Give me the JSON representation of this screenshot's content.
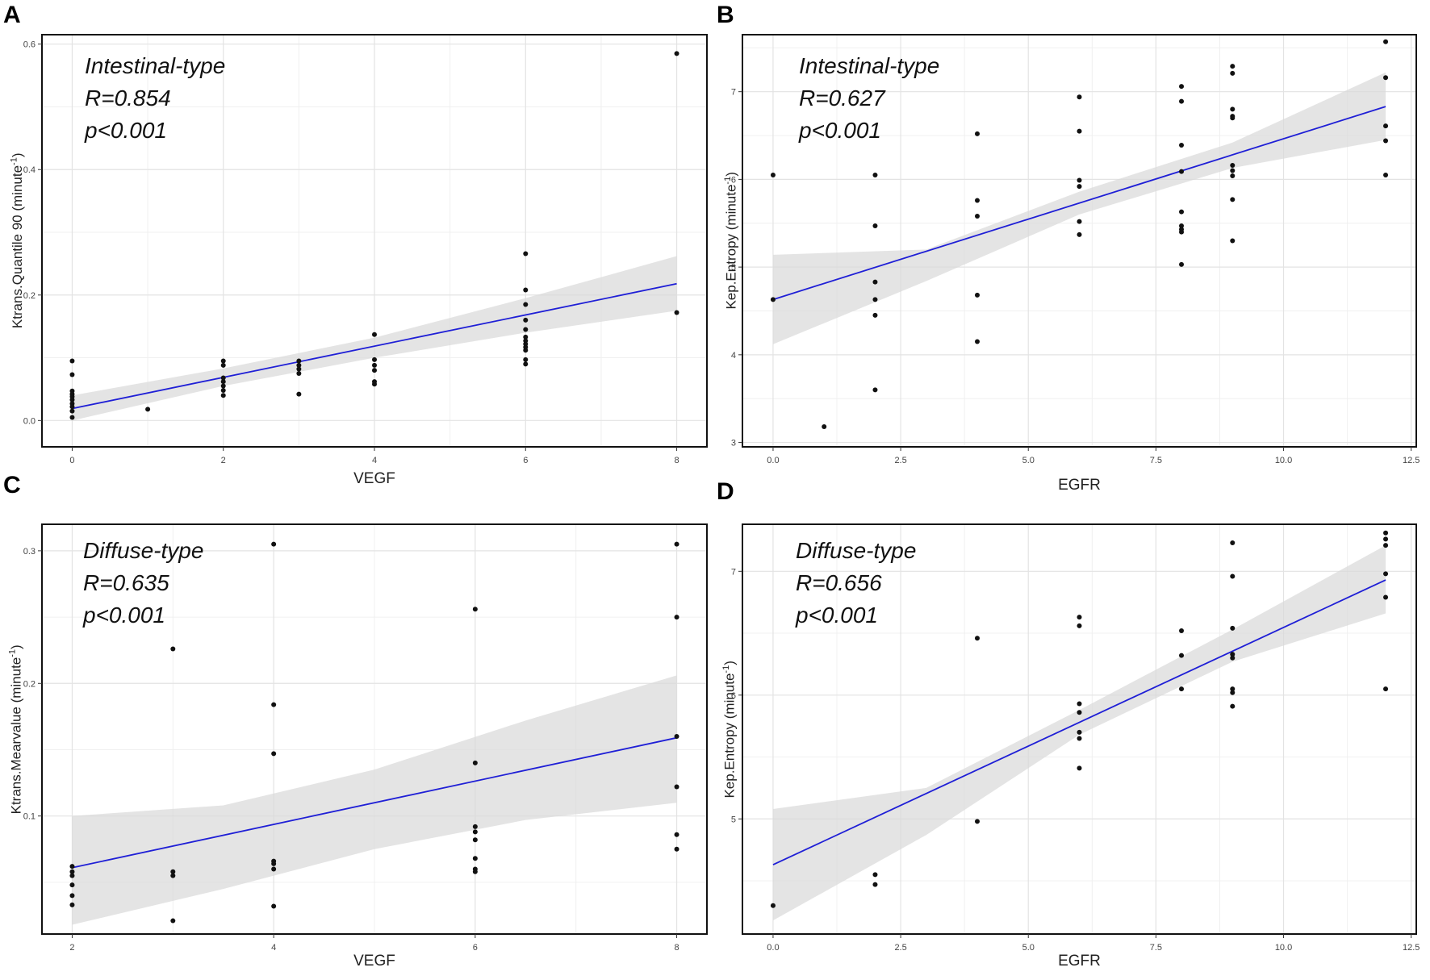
{
  "chart_data": [
    {
      "panel": "A",
      "type": "scatter",
      "xlabel": "VEGF",
      "ylabel": "Ktrans.Quantile 90   (minute",
      "ylabel_sup": "-1",
      "ylabel_end": ")",
      "annotation": [
        "Intestinal-type",
        "R=0.854",
        "p<0.001"
      ],
      "xlim": [
        -0.4,
        8.4
      ],
      "ylim": [
        -0.042,
        0.615
      ],
      "xticks": [
        0,
        2,
        4,
        6,
        8
      ],
      "xtick_labels": [
        "0",
        "2",
        "4",
        "6",
        "8"
      ],
      "yticks": [
        0.0,
        0.2,
        0.4,
        0.6
      ],
      "ytick_labels": [
        "0.0",
        "0.2",
        "0.4",
        "0.6"
      ],
      "fit": {
        "x": [
          0,
          8
        ],
        "y": [
          0.019,
          0.218
        ]
      },
      "band": {
        "x": [
          0,
          2,
          4,
          6,
          8
        ],
        "lower": [
          0.0,
          0.055,
          0.1,
          0.14,
          0.175
        ],
        "upper": [
          0.04,
          0.083,
          0.132,
          0.195,
          0.262
        ]
      },
      "points": [
        [
          0,
          0.095
        ],
        [
          0,
          0.073
        ],
        [
          0,
          0.047
        ],
        [
          0,
          0.042
        ],
        [
          0,
          0.038
        ],
        [
          0,
          0.033
        ],
        [
          0,
          0.027
        ],
        [
          0,
          0.022
        ],
        [
          0,
          0.015
        ],
        [
          0,
          0.005
        ],
        [
          1,
          0.018
        ],
        [
          2,
          0.095
        ],
        [
          2,
          0.088
        ],
        [
          2,
          0.068
        ],
        [
          2,
          0.062
        ],
        [
          2,
          0.055
        ],
        [
          2,
          0.048
        ],
        [
          2,
          0.04
        ],
        [
          3,
          0.095
        ],
        [
          3,
          0.088
        ],
        [
          3,
          0.082
        ],
        [
          3,
          0.075
        ],
        [
          3,
          0.042
        ],
        [
          4,
          0.137
        ],
        [
          4,
          0.097
        ],
        [
          4,
          0.088
        ],
        [
          4,
          0.08
        ],
        [
          4,
          0.062
        ],
        [
          4,
          0.058
        ],
        [
          6,
          0.266
        ],
        [
          6,
          0.208
        ],
        [
          6,
          0.185
        ],
        [
          6,
          0.16
        ],
        [
          6,
          0.145
        ],
        [
          6,
          0.133
        ],
        [
          6,
          0.127
        ],
        [
          6,
          0.122
        ],
        [
          6,
          0.117
        ],
        [
          6,
          0.112
        ],
        [
          6,
          0.097
        ],
        [
          6,
          0.09
        ],
        [
          8,
          0.585
        ],
        [
          8,
          0.172
        ]
      ]
    },
    {
      "panel": "B",
      "type": "scatter",
      "xlabel": "EGFR",
      "ylabel": "Kep.Entropy   (minute",
      "ylabel_sup": "-1",
      "ylabel_end": ")",
      "annotation": [
        "Intestinal-type",
        "R=0.627",
        "p<0.001"
      ],
      "xlim": [
        -0.6,
        12.6
      ],
      "ylim": [
        2.95,
        7.65
      ],
      "xticks": [
        0,
        2.5,
        5,
        7.5,
        10,
        12.5
      ],
      "xtick_labels": [
        "0.0",
        "2.5",
        "5.0",
        "7.5",
        "10.0",
        "12.5"
      ],
      "yticks": [
        3,
        4,
        5,
        6,
        7
      ],
      "ytick_labels": [
        "3",
        "4",
        "5",
        "6",
        "7"
      ],
      "fit": {
        "x": [
          0,
          12
        ],
        "y": [
          4.63,
          6.83
        ]
      },
      "band": {
        "x": [
          0,
          3,
          6,
          9,
          12
        ],
        "lower": [
          4.12,
          4.84,
          5.6,
          6.13,
          6.45
        ],
        "upper": [
          5.14,
          5.2,
          5.86,
          6.42,
          7.22
        ]
      },
      "points": [
        [
          0,
          6.05
        ],
        [
          0,
          4.63
        ],
        [
          1,
          3.18
        ],
        [
          2,
          6.05
        ],
        [
          2,
          5.47
        ],
        [
          2,
          4.83
        ],
        [
          2,
          4.63
        ],
        [
          2,
          4.45
        ],
        [
          2,
          3.6
        ],
        [
          4,
          6.52
        ],
        [
          4,
          5.76
        ],
        [
          4,
          5.58
        ],
        [
          4,
          4.68
        ],
        [
          4,
          4.15
        ],
        [
          6,
          6.94
        ],
        [
          6,
          6.55
        ],
        [
          6,
          5.99
        ],
        [
          6,
          5.92
        ],
        [
          6,
          5.52
        ],
        [
          6,
          5.37
        ],
        [
          8,
          7.06
        ],
        [
          8,
          6.89
        ],
        [
          8,
          6.39
        ],
        [
          8,
          6.09
        ],
        [
          8,
          5.63
        ],
        [
          8,
          5.47
        ],
        [
          8,
          5.43
        ],
        [
          8,
          5.4
        ],
        [
          8,
          5.03
        ],
        [
          9,
          7.29
        ],
        [
          9,
          7.21
        ],
        [
          9,
          6.8
        ],
        [
          9,
          6.72
        ],
        [
          9,
          6.7
        ],
        [
          9,
          6.16
        ],
        [
          9,
          6.1
        ],
        [
          9,
          6.04
        ],
        [
          9,
          5.77
        ],
        [
          9,
          5.3
        ],
        [
          12,
          7.57
        ],
        [
          12,
          7.16
        ],
        [
          12,
          6.61
        ],
        [
          12,
          6.44
        ],
        [
          12,
          6.05
        ]
      ]
    },
    {
      "panel": "C",
      "type": "scatter",
      "xlabel": "VEGF",
      "ylabel": "Ktrans.Mearvalue   (minute",
      "ylabel_sup": "-1",
      "ylabel_end": ")",
      "annotation": [
        "Diffuse-type",
        "R=0.635",
        "p<0.001"
      ],
      "xlim": [
        1.7,
        8.3
      ],
      "ylim": [
        0.011,
        0.32
      ],
      "xticks": [
        2,
        4,
        6,
        8
      ],
      "xtick_labels": [
        "2",
        "4",
        "6",
        "8"
      ],
      "yticks": [
        0.1,
        0.2,
        0.3
      ],
      "ytick_labels": [
        "0.1",
        "0.2",
        "0.3"
      ],
      "fit": {
        "x": [
          2,
          8
        ],
        "y": [
          0.061,
          0.159
        ]
      },
      "band": {
        "x": [
          2,
          3.5,
          5,
          6.5,
          8
        ],
        "lower": [
          0.018,
          0.045,
          0.075,
          0.097,
          0.11
        ],
        "upper": [
          0.1,
          0.108,
          0.135,
          0.172,
          0.206
        ]
      },
      "points": [
        [
          2,
          0.062
        ],
        [
          2,
          0.058
        ],
        [
          2,
          0.055
        ],
        [
          2,
          0.048
        ],
        [
          2,
          0.04
        ],
        [
          2,
          0.033
        ],
        [
          3,
          0.226
        ],
        [
          3,
          0.058
        ],
        [
          3,
          0.055
        ],
        [
          3,
          0.021
        ],
        [
          4,
          0.305
        ],
        [
          4,
          0.184
        ],
        [
          4,
          0.147
        ],
        [
          4,
          0.066
        ],
        [
          4,
          0.064
        ],
        [
          4,
          0.06
        ],
        [
          4,
          0.032
        ],
        [
          6,
          0.256
        ],
        [
          6,
          0.14
        ],
        [
          6,
          0.092
        ],
        [
          6,
          0.088
        ],
        [
          6,
          0.082
        ],
        [
          6,
          0.068
        ],
        [
          6,
          0.06
        ],
        [
          6,
          0.058
        ],
        [
          8,
          0.305
        ],
        [
          8,
          0.25
        ],
        [
          8,
          0.16
        ],
        [
          8,
          0.122
        ],
        [
          8,
          0.086
        ],
        [
          8,
          0.075
        ]
      ]
    },
    {
      "panel": "D",
      "type": "scatter",
      "xlabel": "EGFR",
      "ylabel": "Kep.Entropy   (minute",
      "ylabel_sup": "-1",
      "ylabel_end": ")",
      "annotation": [
        "Diffuse-type",
        "R=0.656",
        "p<0.001"
      ],
      "xlim": [
        -0.6,
        12.6
      ],
      "ylim": [
        4.07,
        7.38
      ],
      "xticks": [
        0,
        2.5,
        5,
        7.5,
        10,
        12.5
      ],
      "xtick_labels": [
        "0.0",
        "2.5",
        "5.0",
        "7.5",
        "10.0",
        "12.5"
      ],
      "yticks": [
        5,
        6,
        7
      ],
      "ytick_labels": [
        "5",
        "6",
        "7"
      ],
      "fit": {
        "x": [
          0,
          12
        ],
        "y": [
          4.63,
          6.93
        ]
      },
      "band": {
        "x": [
          0,
          3,
          6,
          9,
          12
        ],
        "lower": [
          4.18,
          4.87,
          5.68,
          6.27,
          6.66
        ],
        "upper": [
          5.08,
          5.25,
          5.88,
          6.53,
          7.21
        ]
      },
      "points": [
        [
          0,
          4.3
        ],
        [
          2,
          4.55
        ],
        [
          2,
          4.47
        ],
        [
          4,
          6.46
        ],
        [
          4,
          4.98
        ],
        [
          6,
          6.63
        ],
        [
          6,
          6.56
        ],
        [
          6,
          5.93
        ],
        [
          6,
          5.86
        ],
        [
          6,
          5.7
        ],
        [
          6,
          5.65
        ],
        [
          6,
          5.41
        ],
        [
          8,
          6.52
        ],
        [
          8,
          6.32
        ],
        [
          8,
          6.05
        ],
        [
          9,
          7.23
        ],
        [
          9,
          6.96
        ],
        [
          9,
          6.54
        ],
        [
          9,
          6.33
        ],
        [
          9,
          6.3
        ],
        [
          9,
          6.05
        ],
        [
          9,
          6.02
        ],
        [
          9,
          5.91
        ],
        [
          12,
          7.31
        ],
        [
          12,
          7.26
        ],
        [
          12,
          7.21
        ],
        [
          12,
          6.98
        ],
        [
          12,
          6.79
        ],
        [
          12,
          6.05
        ]
      ]
    }
  ]
}
